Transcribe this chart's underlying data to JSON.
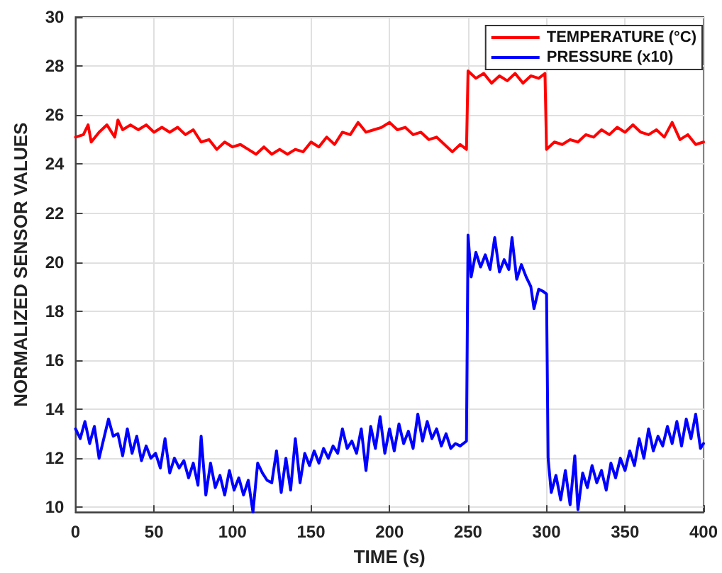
{
  "chart_data": {
    "type": "line",
    "xlabel": "TIME (s)",
    "ylabel": "NORMALIZED SENSOR VALUES",
    "xlim": [
      0,
      400
    ],
    "xticks": [
      0,
      50,
      100,
      150,
      200,
      250,
      300,
      350,
      400
    ],
    "ylim": [
      9.8,
      30
    ],
    "yticks": [
      10,
      12,
      14,
      16,
      18,
      20,
      22,
      24,
      26,
      28,
      30
    ],
    "grid": true,
    "legend": "top right",
    "marker": "none",
    "line_style": "solid",
    "series": [
      {
        "name": "TEMPERATURE (°C)",
        "color": "#ff0000",
        "x": [
          0,
          5,
          8,
          10,
          15,
          20,
          25,
          27,
          30,
          35,
          40,
          45,
          50,
          55,
          60,
          65,
          70,
          75,
          80,
          85,
          90,
          95,
          100,
          105,
          110,
          115,
          120,
          125,
          130,
          135,
          140,
          145,
          150,
          155,
          160,
          165,
          170,
          175,
          180,
          185,
          190,
          195,
          200,
          205,
          210,
          215,
          220,
          225,
          230,
          235,
          240,
          245,
          249,
          250,
          255,
          260,
          265,
          270,
          275,
          280,
          285,
          290,
          295,
          299,
          300,
          305,
          310,
          315,
          320,
          325,
          330,
          335,
          340,
          345,
          350,
          355,
          360,
          365,
          370,
          375,
          380,
          385,
          390,
          395,
          400
        ],
        "values": [
          25.1,
          25.2,
          25.6,
          24.9,
          25.3,
          25.6,
          25.1,
          25.8,
          25.4,
          25.6,
          25.4,
          25.6,
          25.3,
          25.5,
          25.3,
          25.5,
          25.2,
          25.4,
          24.9,
          25.0,
          24.6,
          24.9,
          24.7,
          24.8,
          24.6,
          24.4,
          24.7,
          24.4,
          24.6,
          24.4,
          24.6,
          24.5,
          24.9,
          24.7,
          25.1,
          24.8,
          25.3,
          25.2,
          25.7,
          25.3,
          25.4,
          25.5,
          25.7,
          25.4,
          25.5,
          25.2,
          25.3,
          25.0,
          25.1,
          24.8,
          24.5,
          24.8,
          24.6,
          27.8,
          27.5,
          27.7,
          27.3,
          27.6,
          27.4,
          27.7,
          27.3,
          27.6,
          27.5,
          27.7,
          24.6,
          24.9,
          24.8,
          25.0,
          24.9,
          25.2,
          25.1,
          25.4,
          25.2,
          25.5,
          25.3,
          25.6,
          25.3,
          25.2,
          25.4,
          25.1,
          25.7,
          25.0,
          25.2,
          24.8,
          24.9
        ]
      },
      {
        "name": "PRESSURE (x10)",
        "color": "#0000ff",
        "x": [
          0,
          3,
          6,
          9,
          12,
          15,
          18,
          21,
          24,
          27,
          30,
          33,
          36,
          39,
          42,
          45,
          48,
          51,
          54,
          57,
          60,
          63,
          66,
          69,
          72,
          75,
          78,
          80,
          83,
          86,
          89,
          92,
          95,
          98,
          101,
          104,
          107,
          110,
          113,
          116,
          119,
          122,
          125,
          128,
          131,
          134,
          137,
          140,
          143,
          146,
          149,
          152,
          155,
          158,
          161,
          164,
          167,
          170,
          173,
          176,
          179,
          182,
          185,
          188,
          191,
          194,
          197,
          200,
          203,
          206,
          209,
          212,
          215,
          218,
          221,
          224,
          227,
          230,
          233,
          236,
          239,
          242,
          245,
          249,
          250,
          252,
          255,
          258,
          261,
          264,
          267,
          270,
          273,
          276,
          278,
          281,
          284,
          287,
          290,
          292,
          295,
          298,
          300,
          301,
          303,
          306,
          309,
          312,
          315,
          318,
          320,
          323,
          326,
          329,
          332,
          335,
          338,
          341,
          344,
          347,
          350,
          353,
          356,
          359,
          362,
          365,
          368,
          371,
          374,
          377,
          380,
          383,
          386,
          389,
          392,
          395,
          398,
          400
        ],
        "values": [
          13.2,
          12.8,
          13.5,
          12.6,
          13.3,
          12.0,
          12.8,
          13.6,
          12.9,
          13.0,
          12.1,
          13.2,
          12.2,
          12.9,
          11.9,
          12.5,
          12.0,
          12.2,
          11.6,
          12.8,
          11.4,
          12.0,
          11.6,
          11.9,
          11.2,
          11.8,
          10.9,
          12.9,
          10.5,
          11.8,
          10.8,
          11.3,
          10.5,
          11.5,
          10.7,
          11.2,
          10.5,
          11.1,
          9.8,
          11.8,
          11.4,
          11.1,
          11.0,
          12.3,
          10.6,
          12.0,
          10.7,
          12.8,
          11.0,
          12.2,
          11.7,
          12.3,
          11.8,
          12.4,
          12.0,
          12.5,
          12.2,
          13.2,
          12.4,
          12.7,
          12.2,
          13.2,
          11.5,
          13.3,
          12.4,
          13.7,
          12.2,
          13.2,
          12.3,
          13.4,
          12.6,
          13.1,
          12.4,
          13.8,
          12.7,
          13.5,
          12.8,
          13.2,
          12.5,
          13.0,
          12.4,
          12.6,
          12.5,
          12.7,
          21.1,
          19.4,
          20.4,
          19.8,
          20.3,
          19.7,
          21.0,
          19.6,
          20.1,
          19.7,
          21.0,
          19.3,
          19.9,
          19.4,
          19.0,
          18.1,
          18.9,
          18.8,
          18.7,
          12.0,
          10.6,
          11.3,
          10.3,
          11.5,
          10.1,
          12.1,
          9.9,
          11.4,
          10.8,
          11.7,
          11.0,
          11.5,
          10.7,
          11.8,
          11.2,
          12.0,
          11.5,
          12.3,
          11.7,
          12.8,
          12.0,
          13.2,
          12.3,
          12.9,
          12.5,
          13.3,
          12.6,
          13.5,
          12.5,
          13.6,
          12.8,
          13.8,
          12.4,
          12.6
        ]
      }
    ]
  }
}
